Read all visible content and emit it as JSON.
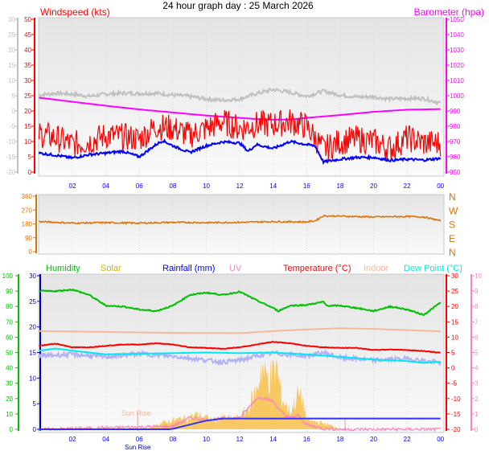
{
  "title": "24 hour graph day : 25 March 2026",
  "chart_data": [
    {
      "type": "line",
      "panel": "wind-pressure",
      "x_tick_labels": [
        "02",
        "04",
        "06",
        "08",
        "10",
        "12",
        "14",
        "16",
        "18",
        "20",
        "22",
        "00"
      ],
      "xlabel": "",
      "axes": {
        "grey_left": {
          "ylim": [
            -20,
            30
          ],
          "ticks": [
            30,
            25,
            20,
            15,
            10,
            5,
            0,
            -5,
            -10,
            -15,
            -20
          ],
          "color": "#c0c0c0"
        },
        "windspeed": {
          "label": "Windspeed (kts)",
          "ylim": [
            0,
            50
          ],
          "ticks": [
            50,
            45,
            40,
            35,
            30,
            25,
            20,
            15,
            10,
            5,
            0
          ],
          "color": "#ff0000"
        },
        "barometer": {
          "label": "Barometer (hpa)",
          "ylim": [
            950,
            1050
          ],
          "ticks": [
            1050,
            1040,
            1030,
            1020,
            1010,
            1000,
            990,
            980,
            970,
            960,
            950
          ],
          "color": "#ff00ff"
        }
      },
      "grid": true,
      "series": [
        {
          "axis": "grey_left",
          "color": "#c0c0c0",
          "x": [
            0,
            1,
            2,
            3,
            4,
            5,
            6,
            7,
            8,
            9,
            10,
            11,
            12,
            13,
            14,
            15,
            16,
            17,
            18,
            19,
            20,
            21,
            22,
            23,
            24
          ],
          "y": [
            5.2,
            5.8,
            5.5,
            4.8,
            5.5,
            5.8,
            5.7,
            5.8,
            5.2,
            4.8,
            3.9,
            3.5,
            3.9,
            5.7,
            7,
            6.1,
            4.8,
            6.5,
            5.2,
            4.6,
            4.6,
            3.9,
            4.1,
            4.1,
            2.6
          ]
        },
        {
          "axis": "barometer",
          "color": "#ff00ff",
          "x": [
            0,
            2,
            4,
            6,
            8,
            10,
            12,
            13,
            14,
            15,
            16,
            18,
            20,
            22,
            24
          ],
          "y": [
            998.7,
            996,
            993.4,
            991,
            989,
            987,
            985.5,
            984.7,
            984.3,
            984.3,
            985.5,
            987.3,
            989.4,
            990.8,
            991.2
          ]
        },
        {
          "axis": "windspeed",
          "color": "#ff0000",
          "x": [
            0,
            1,
            2,
            3,
            4,
            5,
            6,
            7,
            8,
            9,
            10,
            11,
            12,
            13,
            14,
            15,
            16,
            17,
            18,
            19,
            20,
            21,
            22,
            23,
            24
          ],
          "y": [
            12.5,
            11.2,
            9,
            10,
            12,
            11.6,
            10.8,
            15,
            14.3,
            12,
            14.3,
            16.5,
            14.3,
            15.6,
            15.6,
            16.5,
            15,
            7.3,
            10,
            10.8,
            10,
            7.7,
            11.2,
            9.5,
            9.5
          ]
        },
        {
          "axis": "windspeed",
          "color": "#0000ff",
          "x": [
            0,
            1,
            2,
            3,
            4,
            5,
            6,
            7,
            7.4,
            8,
            9,
            10,
            11,
            12,
            12.5,
            13,
            14,
            15,
            16,
            16.5,
            17,
            18,
            19,
            20,
            21,
            22,
            23,
            24
          ],
          "y": [
            6.2,
            5.5,
            4.6,
            5.7,
            6.2,
            6.8,
            5,
            9,
            10.3,
            8.6,
            6.4,
            8.6,
            9.9,
            9.5,
            6.8,
            9,
            7.7,
            10,
            9,
            8.6,
            3.3,
            4.2,
            4.8,
            4.8,
            3.8,
            4.2,
            3.9,
            4.5
          ]
        }
      ]
    },
    {
      "type": "line",
      "panel": "wind-direction",
      "axes": {
        "direction": {
          "ylim": [
            0,
            360
          ],
          "ticks": [
            360,
            270,
            180,
            90,
            0
          ],
          "color": "#e07000"
        }
      },
      "compass_labels": [
        "N",
        "W",
        "S",
        "E",
        "N"
      ],
      "grid": true,
      "series": [
        {
          "axis": "direction",
          "color": "#e07000",
          "x": [
            0,
            2,
            4,
            6,
            8,
            10,
            12,
            14,
            16,
            16.5,
            17,
            18,
            20,
            22,
            23,
            24
          ],
          "y": [
            195,
            185,
            188,
            185,
            190,
            188,
            190,
            195,
            193,
            200,
            232,
            230,
            225,
            228,
            225,
            200
          ]
        }
      ]
    },
    {
      "type": "line",
      "panel": "temperature-humidity-rain-solar",
      "x_tick_labels": [
        "02",
        "04",
        "06",
        "08",
        "10",
        "12",
        "14",
        "16",
        "18",
        "20",
        "22",
        "00"
      ],
      "legend": [
        "Humidity",
        "Solar",
        "Rainfall (mm)",
        "UV",
        "Temperature (°C)",
        "Indoor",
        "Dew Point (°C)"
      ],
      "legend_colors": [
        "#00c000",
        "#c8b400",
        "#0000ff",
        "#ff80c0",
        "#ff0000",
        "#f4b89c",
        "#00e8e8"
      ],
      "legend_placement": "top",
      "axes": {
        "humidity": {
          "ylim": [
            0,
            100
          ],
          "ticks": [
            100,
            90,
            80,
            70,
            60,
            50,
            40,
            30,
            20,
            10,
            0
          ],
          "color": "#00c000"
        },
        "rainfall": {
          "ylim": [
            0,
            30
          ],
          "ticks": [
            30,
            25,
            20,
            15,
            10,
            5,
            0
          ],
          "color": "#0000cc"
        },
        "temperature": {
          "ylim": [
            -20,
            30
          ],
          "ticks": [
            30,
            25,
            20,
            15,
            10,
            5,
            0,
            -5,
            -10,
            -15,
            -20
          ],
          "color": "#ff0000"
        },
        "uv": {
          "ylim": [
            0,
            10
          ],
          "ticks": [
            10,
            9,
            8,
            7,
            6,
            5,
            4,
            3,
            2,
            1,
            0
          ],
          "color": "#ff80c0"
        }
      },
      "annotations": {
        "sunrise_label": "Sun Rise",
        "sunrise_axis_label": "Sun Rise",
        "sunrise_hour": 5.9,
        "sunset_hour": 18.3
      },
      "grid": true,
      "series": [
        {
          "name": "Solar",
          "axis": "uv",
          "fill": true,
          "color": "#f8b830",
          "x": [
            0,
            6.5,
            7,
            8,
            9,
            9.5,
            10,
            10.5,
            11,
            12,
            12.5,
            13,
            13.3,
            13.5,
            14,
            14.2,
            14.5,
            15,
            15.5,
            15.8,
            16,
            17,
            18,
            18.5,
            24
          ],
          "y": [
            0,
            0,
            0.3,
            0.6,
            0.75,
            1,
            0.75,
            0.6,
            0.75,
            0.75,
            1.4,
            2.5,
            4.2,
            3.4,
            3.5,
            4,
            2.1,
            1.1,
            2.3,
            1.8,
            0.6,
            0.4,
            0.05,
            0,
            0
          ]
        },
        {
          "name": "UV",
          "axis": "uv",
          "color": "#ff80c0",
          "x": [
            0,
            8,
            9,
            10,
            11,
            12,
            13,
            13.3,
            14,
            14.5,
            15,
            15.5,
            16,
            17,
            18,
            24
          ],
          "y": [
            0,
            0.2,
            0.75,
            0.6,
            0.7,
            0.75,
            2,
            2.1,
            1.8,
            1.1,
            0.75,
            0.9,
            0.3,
            0.05,
            0,
            0
          ]
        },
        {
          "name": "Rainfall (mm)",
          "axis": "rainfall",
          "color": "#3030ff",
          "x": [
            0,
            7.8,
            8,
            9,
            10,
            11,
            12,
            24,
            24.05
          ],
          "y": [
            0,
            0,
            0.1,
            0.9,
            1.7,
            2.1,
            2.1,
            2.1,
            0
          ]
        },
        {
          "name": "Humidity",
          "axis": "humidity",
          "color": "#00c000",
          "x": [
            0,
            1,
            2,
            3,
            4,
            5,
            6,
            7,
            8,
            9,
            10,
            11,
            12,
            13,
            14,
            14.3,
            15,
            16,
            17,
            17.2,
            18,
            19,
            20,
            21,
            22,
            23,
            24
          ],
          "y": [
            90,
            90,
            91,
            87.5,
            80.5,
            80,
            78,
            77,
            80.5,
            87.5,
            89,
            87.5,
            89.6,
            84,
            79,
            77,
            80.5,
            81,
            83,
            80.5,
            80.5,
            79,
            77,
            80,
            78,
            74.5,
            82.6
          ]
        },
        {
          "name": "Indoor",
          "axis": "temperature",
          "color": "#f4b89c",
          "x": [
            0,
            4,
            8,
            12,
            14,
            16,
            18,
            20,
            22,
            24
          ],
          "y": [
            12,
            11.7,
            11.4,
            11.3,
            12,
            12.5,
            12.9,
            12.7,
            12.3,
            11.9
          ]
        },
        {
          "axis": "temperature",
          "color": "#b0b0f8",
          "x": [
            0,
            2,
            4,
            6,
            8,
            10,
            11,
            12,
            13,
            14,
            16,
            17,
            18,
            20,
            22,
            24
          ],
          "y": [
            3.9,
            4.4,
            3.6,
            4.6,
            3.8,
            2.5,
            1.9,
            2.5,
            3.9,
            4.8,
            3.8,
            5,
            3.3,
            2.5,
            3,
            1.6
          ]
        },
        {
          "name": "Dew Point (°C)",
          "axis": "temperature",
          "color": "#00e8f0",
          "x": [
            0,
            1,
            2,
            3,
            4,
            6,
            8,
            10,
            12,
            14,
            16,
            18,
            20,
            22,
            23,
            24
          ],
          "y": [
            5.6,
            6.3,
            5.6,
            5,
            4.4,
            4.6,
            4.8,
            5,
            4.8,
            5,
            4.4,
            3.6,
            2.7,
            2.2,
            1.6,
            2
          ]
        },
        {
          "name": "Temperature (°C)",
          "axis": "temperature",
          "color": "#ff0000",
          "x": [
            0,
            1,
            2,
            3,
            4,
            5,
            6,
            7,
            8,
            9,
            10,
            11,
            12,
            13,
            14,
            15,
            16,
            17,
            18,
            19,
            20,
            21,
            22,
            23,
            24
          ],
          "y": [
            7.2,
            7.9,
            6.7,
            6.7,
            7.2,
            7.6,
            7.6,
            8,
            7.6,
            6.7,
            6.5,
            6.2,
            6.7,
            7.6,
            8.5,
            8,
            7.2,
            6.7,
            6.5,
            6.5,
            5.8,
            6,
            5.8,
            5.5,
            4.9
          ]
        }
      ]
    }
  ]
}
